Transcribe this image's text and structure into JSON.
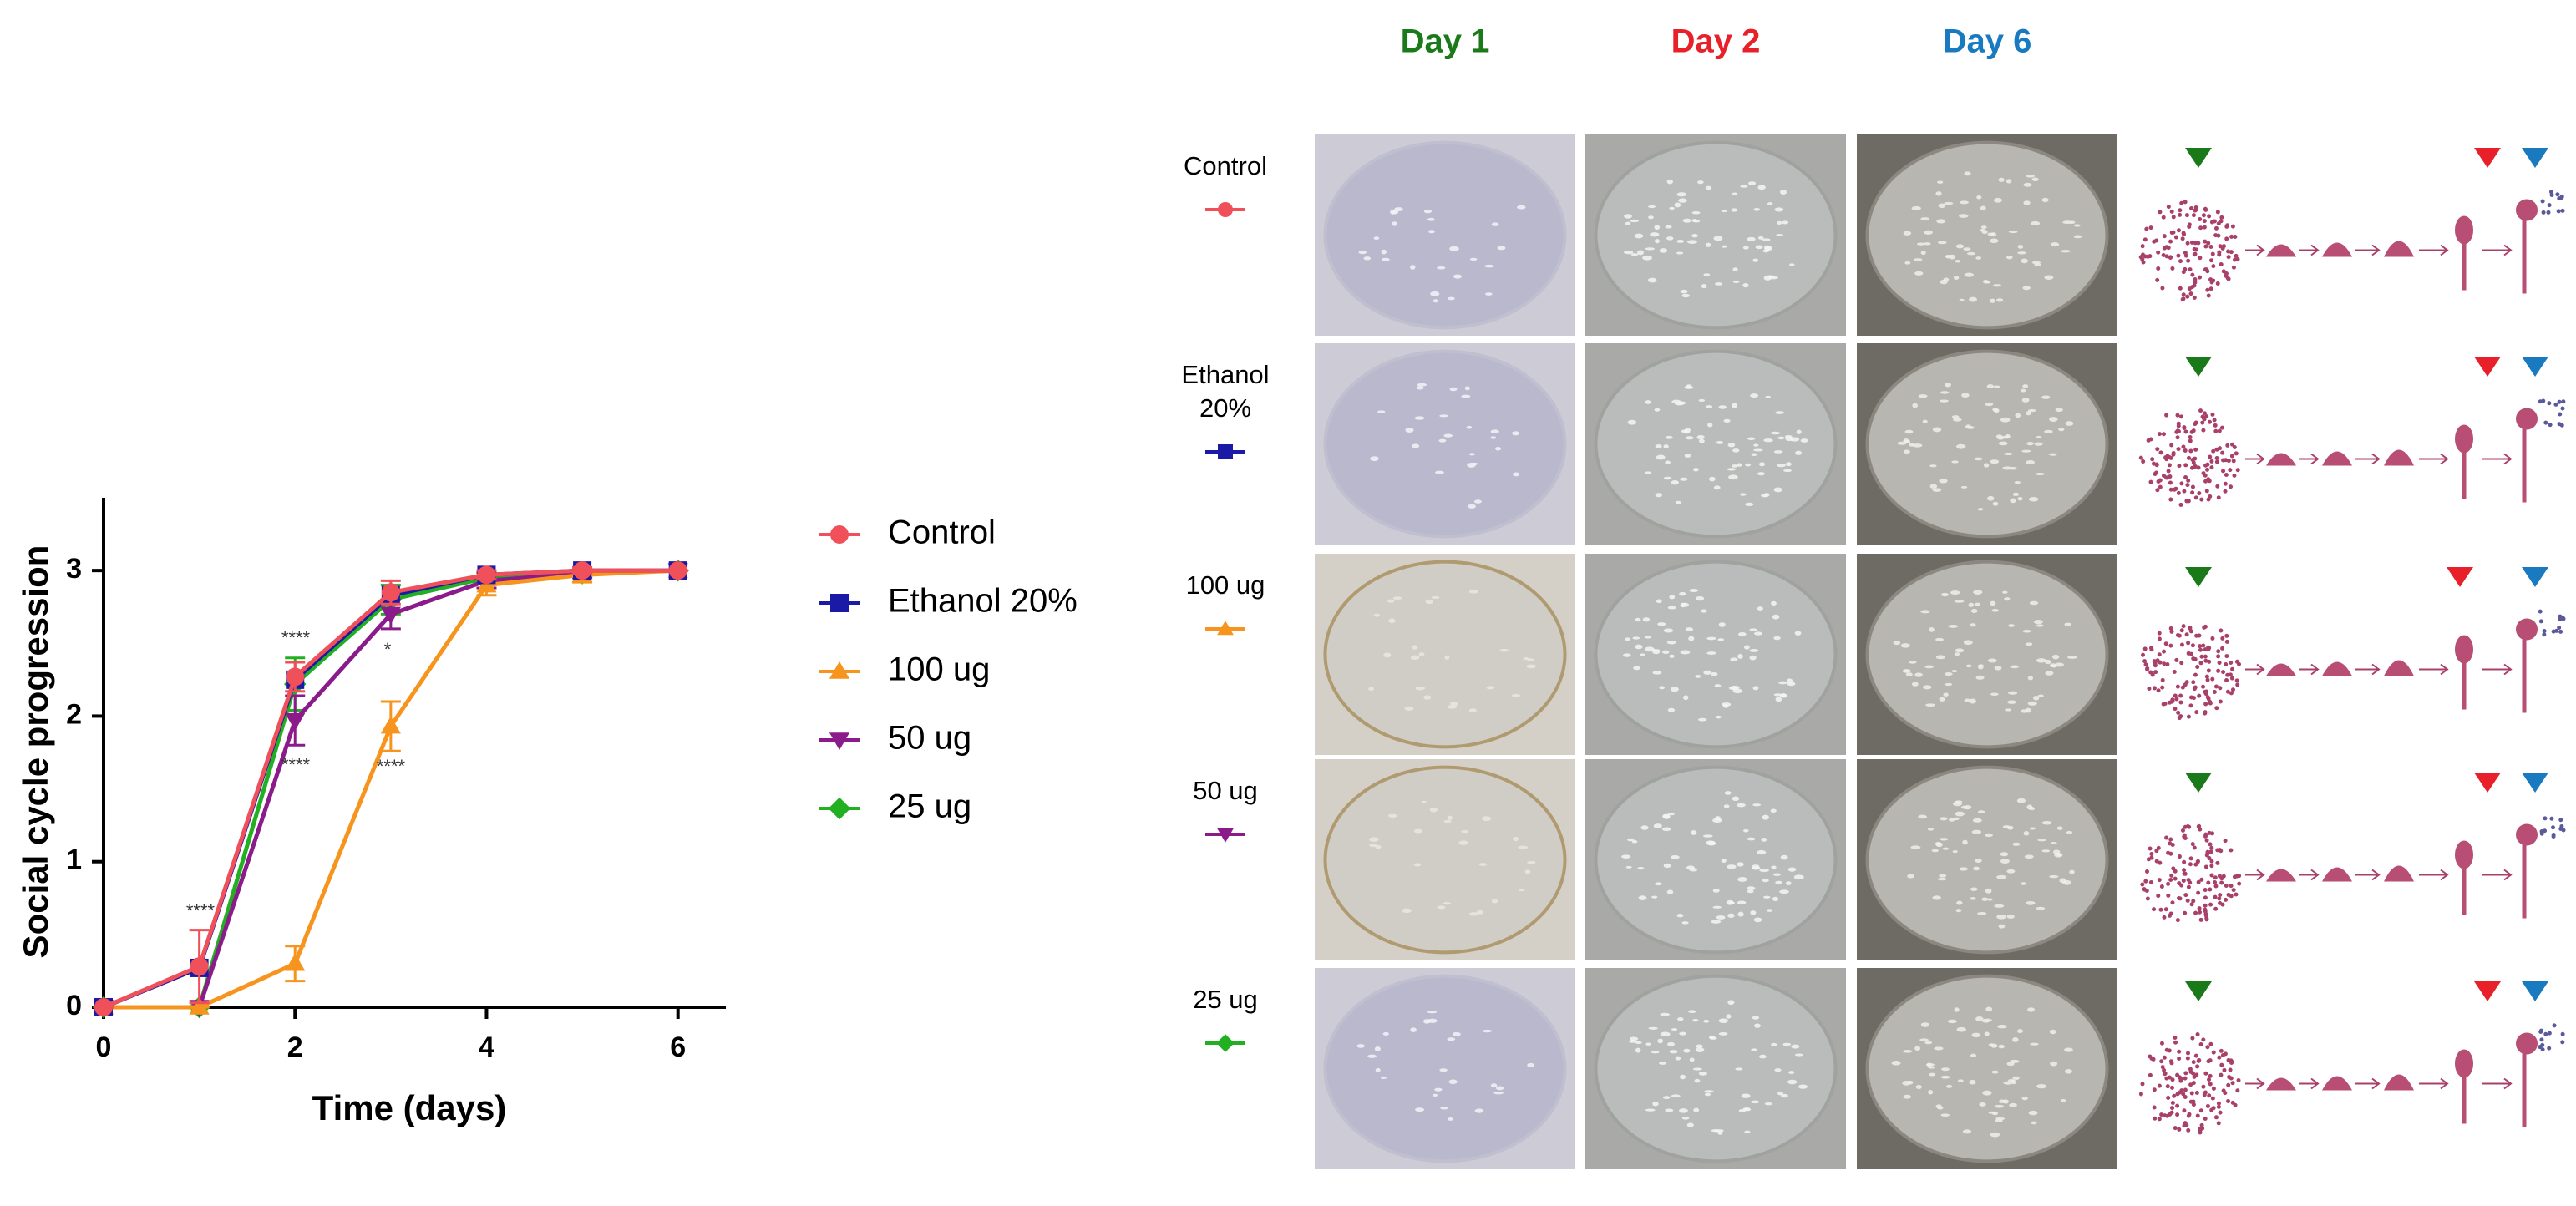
{
  "chart_data": {
    "type": "line",
    "x": [
      0,
      1,
      2,
      3,
      4,
      5,
      6
    ],
    "xlabel": "Time (days)",
    "ylabel": "Social cycle progression",
    "xlim": [
      0,
      6.5
    ],
    "ylim": [
      0,
      3.5
    ],
    "xticks": [
      0,
      2,
      4,
      6
    ],
    "yticks": [
      0,
      1,
      2,
      3
    ],
    "series": [
      {
        "name": "Control",
        "color": "#f0505a",
        "marker": "circle",
        "values": [
          0,
          0.28,
          2.27,
          2.85,
          2.97,
          3.0,
          3.0
        ],
        "errors": [
          0,
          0.25,
          0.1,
          0.08,
          0.03,
          0.02,
          0
        ]
      },
      {
        "name": "Ethanol 20%",
        "color": "#1a1aa6",
        "marker": "square",
        "values": [
          0,
          0.27,
          2.25,
          2.83,
          2.97,
          3.0,
          3.0
        ]
      },
      {
        "name": "100 ug",
        "color": "#f7941d",
        "marker": "triangle",
        "values": [
          0,
          0,
          0.3,
          1.93,
          2.9,
          2.97,
          3.0
        ],
        "errors": [
          0,
          0,
          0.12,
          0.17,
          0.07,
          0.05,
          0
        ]
      },
      {
        "name": "50 ug",
        "color": "#8b1a8b",
        "marker": "triangle-down",
        "values": [
          0,
          0,
          1.97,
          2.7,
          2.93,
          2.98,
          3.0
        ],
        "errors": [
          0,
          0,
          0.17,
          0.1,
          0.05,
          0.03,
          0
        ]
      },
      {
        "name": "25 ug",
        "color": "#22b022",
        "marker": "diamond",
        "values": [
          0,
          0,
          2.22,
          2.8,
          2.95,
          2.98,
          3.0
        ],
        "errors": [
          0,
          0,
          0.18,
          0.1,
          0.04,
          0.03,
          0
        ]
      }
    ],
    "annotations": [
      "****",
      "****",
      "****",
      "*",
      "****"
    ]
  },
  "panel": {
    "columns": [
      "Day 1",
      "Day 2",
      "Day 6"
    ],
    "column_colors": [
      "#1a7a1a",
      "#e8202a",
      "#1a7ac0"
    ],
    "rows": [
      "Control",
      "Ethanol\n20%",
      "100  ug",
      "50 ug",
      "25 ug"
    ]
  }
}
